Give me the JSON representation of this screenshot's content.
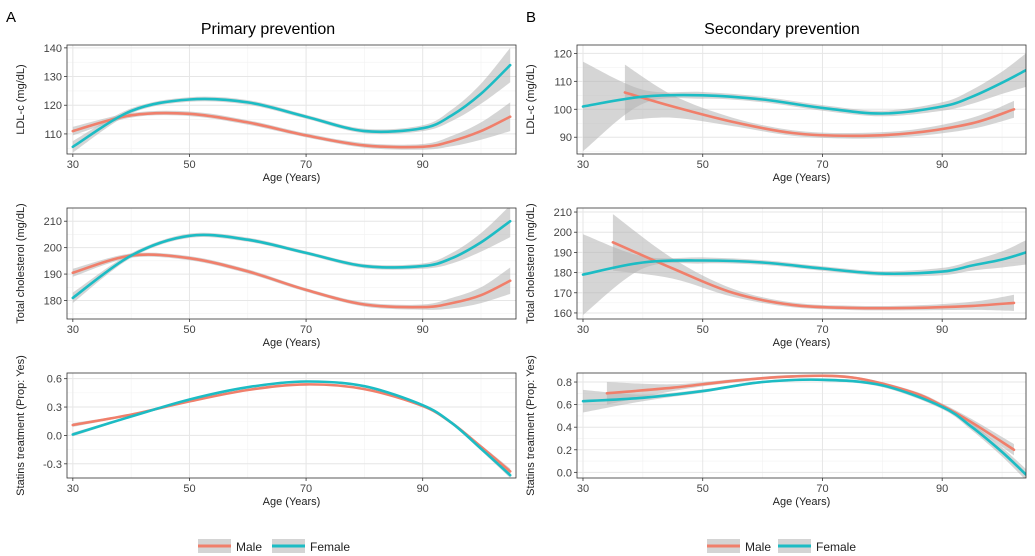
{
  "colors": {
    "male": "#F07F6B",
    "female": "#1CBCC4",
    "band": "#B3B3B3",
    "grid_major": "#E6E6E6",
    "grid_minor": "#F2F2F2",
    "frame": "#333333"
  },
  "panels": [
    {
      "letter": "A",
      "title": "Primary prevention",
      "legend": [
        {
          "label": "Male",
          "color": "#F07F6B"
        },
        {
          "label": "Female",
          "color": "#1CBCC4"
        }
      ]
    },
    {
      "letter": "B",
      "title": "Secondary prevention",
      "legend": [
        {
          "label": "Male",
          "color": "#F07F6B"
        },
        {
          "label": "Female",
          "color": "#1CBCC4"
        }
      ]
    }
  ],
  "chart_data": [
    {
      "type": "line",
      "panel": "A",
      "title": "Primary prevention",
      "xlabel": "Age (Years)",
      "ylabel": "LDL-c (mg/dL)",
      "xlim": [
        29,
        106
      ],
      "ylim": [
        103,
        141
      ],
      "xticks": [
        30,
        50,
        70,
        90
      ],
      "yticks": [
        110,
        120,
        130,
        140
      ],
      "series": [
        {
          "name": "Male",
          "color": "#F07F6B",
          "x": [
            30,
            40,
            50,
            60,
            70,
            80,
            90,
            95,
            100,
            105
          ],
          "y": [
            111,
            116.5,
            117,
            114,
            109.5,
            106,
            105.5,
            107.5,
            111,
            116
          ],
          "band": [
            1.5,
            0.8,
            0.8,
            0.8,
            0.7,
            0.8,
            1.0,
            1.8,
            3,
            5
          ]
        },
        {
          "name": "Female",
          "color": "#1CBCC4",
          "x": [
            30,
            40,
            50,
            60,
            70,
            80,
            90,
            95,
            100,
            105
          ],
          "y": [
            105.5,
            118,
            122,
            121,
            116,
            111,
            112,
            116.5,
            124,
            134
          ],
          "band": [
            2,
            0.9,
            0.8,
            0.8,
            0.7,
            0.8,
            1.0,
            2,
            3.5,
            6
          ]
        }
      ]
    },
    {
      "type": "line",
      "panel": "A",
      "xlabel": "Age (Years)",
      "ylabel": "Total cholesterol (mg/dL)",
      "xlim": [
        29,
        106
      ],
      "ylim": [
        173,
        215
      ],
      "xticks": [
        30,
        50,
        70,
        90
      ],
      "yticks": [
        180,
        190,
        200,
        210
      ],
      "series": [
        {
          "name": "Male",
          "color": "#F07F6B",
          "x": [
            30,
            40,
            50,
            60,
            70,
            80,
            90,
            95,
            100,
            105
          ],
          "y": [
            190.5,
            197,
            196,
            191,
            184,
            178.5,
            177.5,
            179,
            182,
            187.5
          ],
          "band": [
            1.5,
            0.8,
            0.8,
            0.8,
            0.7,
            0.8,
            1.0,
            2,
            3,
            5
          ]
        },
        {
          "name": "Female",
          "color": "#1CBCC4",
          "x": [
            30,
            40,
            50,
            60,
            70,
            80,
            90,
            95,
            100,
            105
          ],
          "y": [
            181,
            197,
            204.5,
            203,
            198,
            193,
            193,
            196,
            202,
            210
          ],
          "band": [
            2,
            0.9,
            0.8,
            0.8,
            0.7,
            0.8,
            1.0,
            2,
            3.5,
            6
          ]
        }
      ]
    },
    {
      "type": "line",
      "panel": "A",
      "xlabel": "Age (Years)",
      "ylabel": "Statins treatment (Prop: Yes)",
      "xlim": [
        29,
        106
      ],
      "ylim": [
        -0.45,
        0.66
      ],
      "xticks": [
        30,
        50,
        70,
        90
      ],
      "yticks": [
        -0.3,
        0.0,
        0.3,
        0.6
      ],
      "series": [
        {
          "name": "Male",
          "color": "#F07F6B",
          "x": [
            30,
            40,
            50,
            60,
            70,
            80,
            90,
            95,
            100,
            105
          ],
          "y": [
            0.11,
            0.22,
            0.36,
            0.48,
            0.54,
            0.49,
            0.31,
            0.13,
            -0.12,
            -0.38
          ],
          "band": [
            0.02,
            0.01,
            0.01,
            0.01,
            0.01,
            0.01,
            0.01,
            0.015,
            0.02,
            0.03
          ]
        },
        {
          "name": "Female",
          "color": "#1CBCC4",
          "x": [
            30,
            40,
            50,
            60,
            70,
            80,
            90,
            95,
            100,
            105
          ],
          "y": [
            0.01,
            0.2,
            0.38,
            0.51,
            0.57,
            0.52,
            0.32,
            0.13,
            -0.14,
            -0.42
          ],
          "band": [
            0.02,
            0.01,
            0.01,
            0.01,
            0.01,
            0.01,
            0.01,
            0.015,
            0.02,
            0.03
          ]
        }
      ]
    },
    {
      "type": "line",
      "panel": "B",
      "title": "Secondary prevention",
      "xlabel": "Age (Years)",
      "ylabel": "LDL-c (mg/dL)",
      "xlim": [
        29,
        104
      ],
      "ylim": [
        84,
        123
      ],
      "xticks": [
        30,
        50,
        70,
        90
      ],
      "yticks": [
        90,
        100,
        110,
        120
      ],
      "series": [
        {
          "name": "Male",
          "color": "#F07F6B",
          "x": [
            37,
            45,
            55,
            65,
            75,
            85,
            95,
            102
          ],
          "y": [
            106,
            101,
            95.5,
            91.5,
            90.5,
            91.5,
            95,
            100
          ],
          "band": [
            10,
            4,
            1.5,
            1,
            1,
            1.2,
            2,
            3
          ]
        },
        {
          "name": "Female",
          "color": "#1CBCC4",
          "x": [
            30,
            40,
            50,
            60,
            70,
            80,
            90,
            95,
            100,
            104
          ],
          "y": [
            101,
            104.5,
            105,
            103.5,
            100.5,
            98.5,
            101,
            104.5,
            109.5,
            114
          ],
          "band": [
            16,
            2.5,
            1.2,
            1,
            1,
            1,
            1.5,
            2.5,
            4,
            6
          ]
        }
      ]
    },
    {
      "type": "line",
      "panel": "B",
      "xlabel": "Age (Years)",
      "ylabel": "Total cholesterol (mg/dL)",
      "xlim": [
        29,
        104
      ],
      "ylim": [
        157,
        212
      ],
      "xticks": [
        30,
        50,
        70,
        90
      ],
      "yticks": [
        160,
        170,
        180,
        190,
        200,
        210
      ],
      "series": [
        {
          "name": "Male",
          "color": "#F07F6B",
          "x": [
            35,
            45,
            55,
            65,
            75,
            85,
            95,
            102
          ],
          "y": [
            195,
            182,
            170,
            164,
            162.5,
            162.5,
            163.5,
            165
          ],
          "band": [
            14,
            5,
            2,
            1.2,
            1.1,
            1.2,
            2,
            4
          ]
        },
        {
          "name": "Female",
          "color": "#1CBCC4",
          "x": [
            30,
            40,
            50,
            60,
            70,
            80,
            90,
            95,
            100,
            104
          ],
          "y": [
            179,
            185,
            186,
            185,
            182,
            179.5,
            180.5,
            183.5,
            186.5,
            190
          ],
          "band": [
            20,
            3,
            1.5,
            1.2,
            1.1,
            1.2,
            1.8,
            2.5,
            4,
            6
          ]
        }
      ]
    },
    {
      "type": "line",
      "panel": "B",
      "xlabel": "Age (Years)",
      "ylabel": "Statins treatment (Prop: Yes)",
      "xlim": [
        29,
        104
      ],
      "ylim": [
        -0.05,
        0.88
      ],
      "xticks": [
        30,
        50,
        70,
        90
      ],
      "yticks": [
        0.0,
        0.2,
        0.4,
        0.6,
        0.8
      ],
      "series": [
        {
          "name": "Male",
          "color": "#F07F6B",
          "x": [
            34,
            45,
            55,
            65,
            75,
            85,
            90,
            95,
            102
          ],
          "y": [
            0.7,
            0.75,
            0.81,
            0.85,
            0.84,
            0.71,
            0.59,
            0.44,
            0.2
          ],
          "band": [
            0.1,
            0.03,
            0.015,
            0.012,
            0.012,
            0.015,
            0.02,
            0.03,
            0.05
          ]
        },
        {
          "name": "Female",
          "color": "#1CBCC4",
          "x": [
            30,
            40,
            50,
            60,
            70,
            80,
            90,
            95,
            100,
            104
          ],
          "y": [
            0.63,
            0.66,
            0.72,
            0.8,
            0.82,
            0.77,
            0.58,
            0.4,
            0.18,
            -0.02
          ],
          "band": [
            0.1,
            0.03,
            0.015,
            0.012,
            0.012,
            0.015,
            0.02,
            0.03,
            0.04,
            0.05
          ]
        }
      ]
    }
  ]
}
